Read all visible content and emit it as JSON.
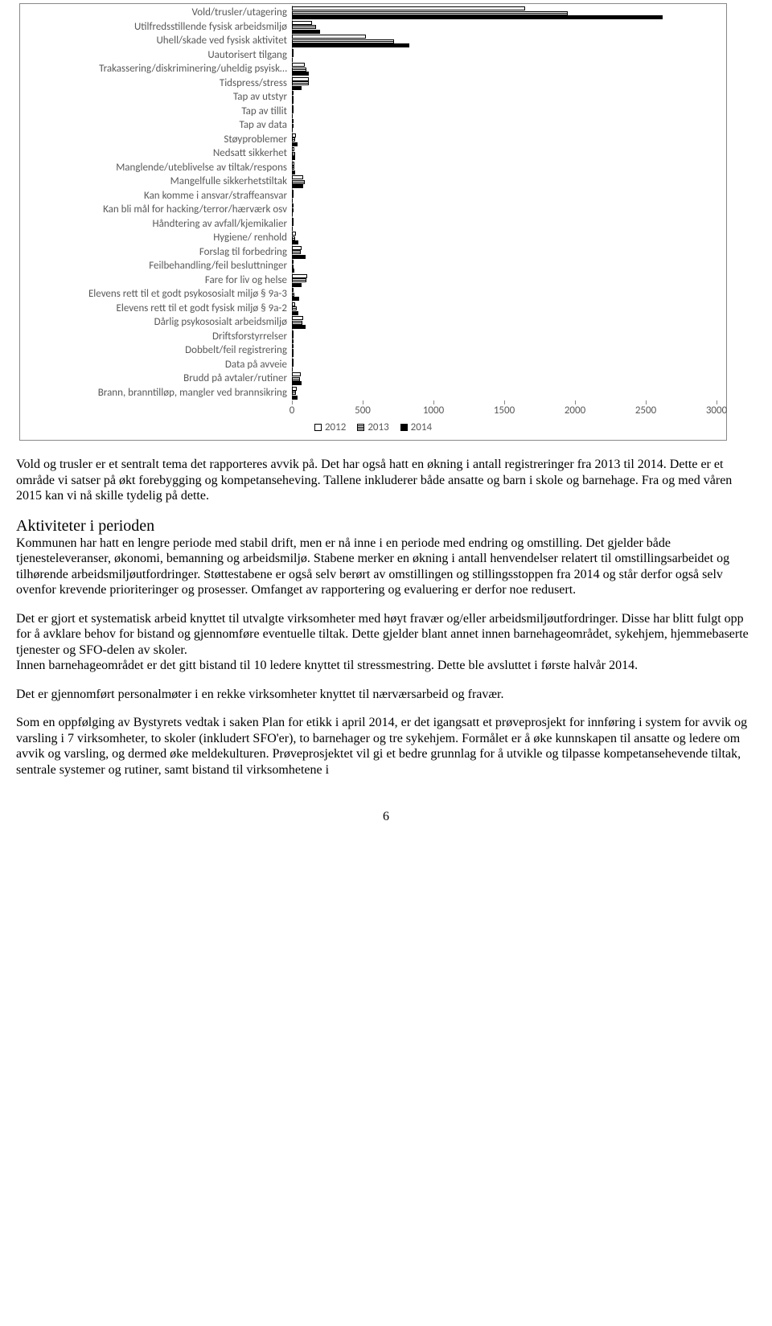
{
  "chart": {
    "type": "bar-horizontal-grouped",
    "xlim": [
      0,
      3000
    ],
    "xtick_step": 500,
    "xticks": [
      0,
      500,
      1000,
      1500,
      2000,
      2500,
      3000
    ],
    "label_fontsize": 13,
    "label_color": "#595959",
    "axis_color": "#888888",
    "background_color": "#ffffff",
    "series": [
      {
        "name": "2012",
        "fill": "#ffffff",
        "border": "#000000"
      },
      {
        "name": "2013",
        "fill": "pattern-horizontal",
        "border": "#000000"
      },
      {
        "name": "2014",
        "fill": "#000000",
        "border": "#000000"
      }
    ],
    "categories": [
      {
        "label": "Vold/trusler/utagering",
        "v2012": 1650,
        "v2013": 1950,
        "v2014": 2620
      },
      {
        "label": "Utilfredsstillende fysisk arbeidsmiljø",
        "v2012": 140,
        "v2013": 170,
        "v2014": 200
      },
      {
        "label": "Uhell/skade ved fysisk aktivitet",
        "v2012": 520,
        "v2013": 720,
        "v2014": 830
      },
      {
        "label": "Uautorisert tilgang",
        "v2012": 2,
        "v2013": 3,
        "v2014": 5
      },
      {
        "label": "Trakassering/diskriminering/uheldig psyisk…",
        "v2012": 90,
        "v2013": 100,
        "v2014": 120
      },
      {
        "label": "Tidspress/stress",
        "v2012": 120,
        "v2013": 120,
        "v2014": 70
      },
      {
        "label": "Tap av utstyr",
        "v2012": 10,
        "v2013": 8,
        "v2014": 12
      },
      {
        "label": "Tap av tillit",
        "v2012": 3,
        "v2013": 4,
        "v2014": 3
      },
      {
        "label": "Tap av data",
        "v2012": 2,
        "v2013": 2,
        "v2014": 2
      },
      {
        "label": "Støyproblemer",
        "v2012": 30,
        "v2013": 25,
        "v2014": 40
      },
      {
        "label": "Nedsatt sikkerhet",
        "v2012": 15,
        "v2013": 20,
        "v2014": 25
      },
      {
        "label": "Manglende/uteblivelse av tiltak/respons",
        "v2012": 15,
        "v2013": 18,
        "v2014": 20
      },
      {
        "label": "Mangelfulle sikkerhetstiltak",
        "v2012": 80,
        "v2013": 90,
        "v2014": 80
      },
      {
        "label": "Kan komme i ansvar/straffeansvar",
        "v2012": 2,
        "v2013": 3,
        "v2014": 3
      },
      {
        "label": "Kan bli mål for hacking/terror/hærværk osv",
        "v2012": 3,
        "v2013": 3,
        "v2014": 3
      },
      {
        "label": "Håndtering av avfall/kjemikalier",
        "v2012": 5,
        "v2013": 5,
        "v2014": 5
      },
      {
        "label": "Hygiene/ renhold",
        "v2012": 30,
        "v2013": 25,
        "v2014": 45
      },
      {
        "label": "Forslag til forbedring",
        "v2012": 70,
        "v2013": 60,
        "v2014": 95
      },
      {
        "label": "Feilbehandling/feil besluttninger",
        "v2012": 10,
        "v2013": 10,
        "v2014": 15
      },
      {
        "label": "Fare for liv og helse",
        "v2012": 110,
        "v2013": 100,
        "v2014": 70
      },
      {
        "label": "Elevens rett til et godt psykososialt miljø § 9a-3",
        "v2012": 10,
        "v2013": 15,
        "v2014": 50
      },
      {
        "label": "Elevens rett til et godt fysisk miljø § 9a-2",
        "v2012": 20,
        "v2013": 35,
        "v2014": 45
      },
      {
        "label": "Dårlig psykososialt arbeidsmiljø",
        "v2012": 80,
        "v2013": 75,
        "v2014": 95
      },
      {
        "label": "Driftsforstyrrelser",
        "v2012": 10,
        "v2013": 10,
        "v2014": 12
      },
      {
        "label": "Dobbelt/feil registrering",
        "v2012": 10,
        "v2013": 8,
        "v2014": 10
      },
      {
        "label": "Data på avveie",
        "v2012": 5,
        "v2013": 5,
        "v2014": 5
      },
      {
        "label": "Brudd på avtaler/rutiner",
        "v2012": 60,
        "v2013": 55,
        "v2014": 70
      },
      {
        "label": "Brann, branntilløp, mangler ved brannsikring",
        "v2012": 35,
        "v2013": 30,
        "v2014": 40
      }
    ]
  },
  "text": {
    "p1": "Vold og trusler er et sentralt tema det rapporteres avvik på. Det har også hatt en økning i antall registreringer fra 2013 til 2014. Dette er et område vi satser på økt forebygging og kompetanseheving. Tallene inkluderer både ansatte og barn i skole og barnehage. Fra og med våren 2015 kan vi nå skille tydelig på dette.",
    "h1": "Aktiviteter i perioden",
    "p2": "Kommunen har hatt en lengre periode med stabil drift, men er nå inne i en periode med endring og omstilling. Det gjelder både tjenesteleveranser, økonomi, bemanning og arbeidsmiljø. Stabene merker en økning i antall henvendelser relatert til omstillingsarbeidet og tilhørende arbeidsmiljøutfordringer. Støttestabene er også selv berørt av omstillingen og stillingsstoppen fra 2014 og står derfor også selv ovenfor krevende prioriteringer og prosesser. Omfanget av rapportering og evaluering er derfor noe redusert.",
    "p3a": "Det er gjort et systematisk arbeid knyttet til utvalgte virksomheter med høyt fravær og/eller arbeidsmiljøutfordringer. Disse har blitt fulgt opp for å avklare behov for bistand og gjennomføre eventuelle tiltak. Dette gjelder blant annet innen barnehageområdet, sykehjem, hjemmebaserte tjenester og SFO-delen av skoler.",
    "p3b": "Innen barnehageområdet er det gitt bistand til 10 ledere knyttet til stressmestring. Dette ble avsluttet i første halvår 2014.",
    "p4": "Det er gjennomført personalmøter i en rekke virksomheter knyttet til nærværsarbeid og fravær.",
    "p5": "Som en oppfølging av Bystyrets vedtak i saken Plan for etikk i april 2014, er det igangsatt et prøveprosjekt for innføring i system for avvik og varsling i 7 virksomheter, to skoler (inkludert SFO'er), to barnehager og tre sykehjem. Formålet er å øke kunnskapen til ansatte og ledere om avvik og varsling, og dermed øke meldekulturen. Prøveprosjektet vil gi et bedre grunnlag for å utvikle og tilpasse kompetansehevende tiltak, sentrale systemer og rutiner, samt bistand til virksomhetene i",
    "pagenum": "6"
  }
}
